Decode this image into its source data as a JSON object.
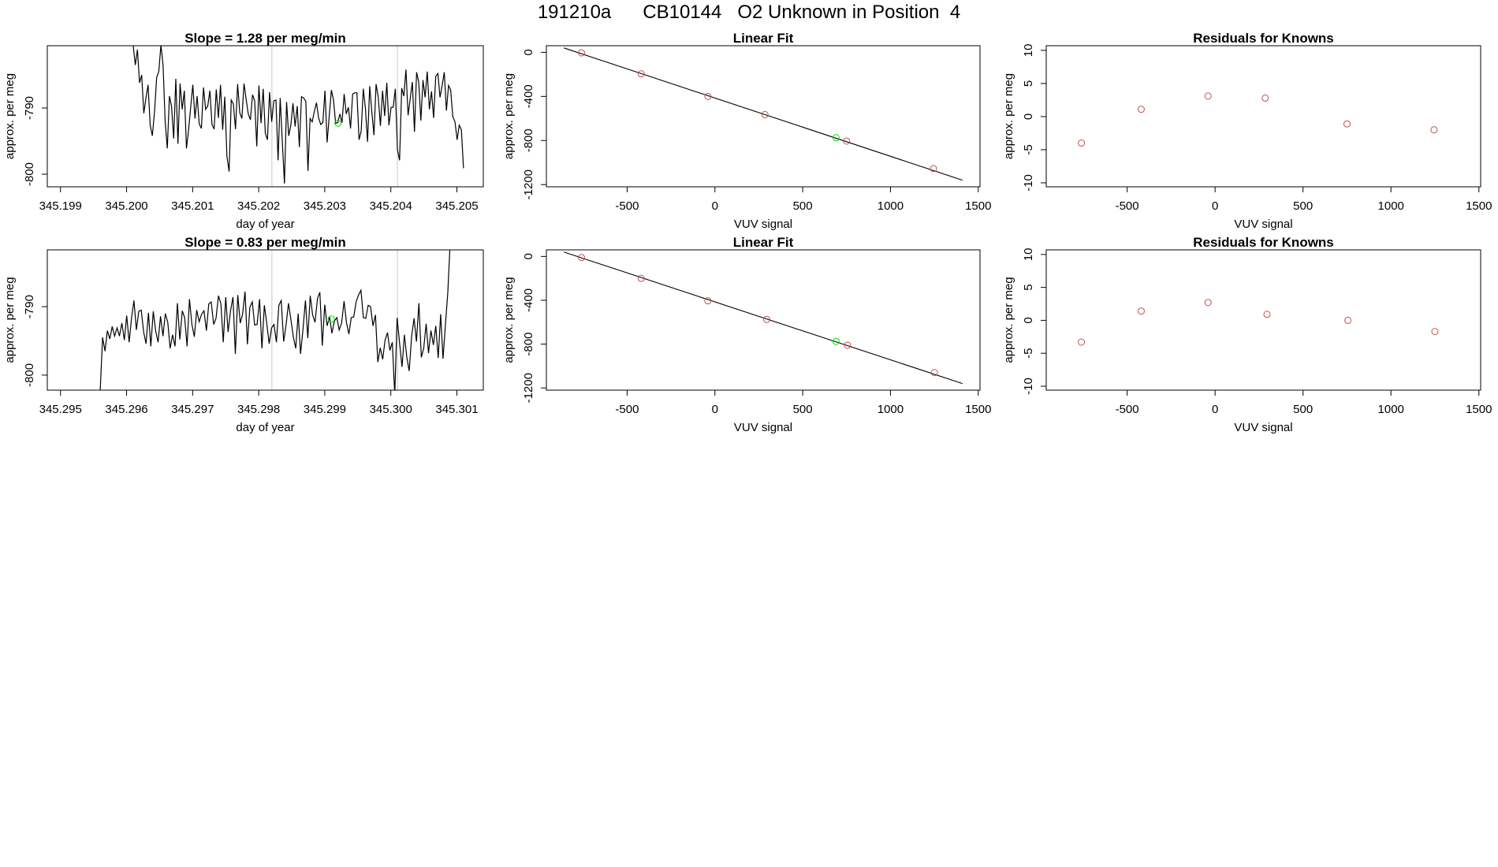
{
  "page": {
    "title": "191210a      CB10144   O2 Unknown in Position  4"
  },
  "colors": {
    "line": "#000000",
    "known_point": "#c0504d",
    "unknown_point": "#00e000",
    "gridline": "#c8c8c8",
    "fit_line": "#000000"
  },
  "chart_data": [
    {
      "id": "ts1",
      "type": "line",
      "title": "Slope =  1.28  per meg/min",
      "xlabel": "day of year",
      "ylabel": "approx. per meg",
      "xlim": [
        345.1988,
        345.2054
      ],
      "ylim": [
        -801.9,
        -780.6
      ],
      "xticks": [
        "345.199",
        "345.200",
        "345.201",
        "345.202",
        "345.203",
        "345.204",
        "345.205"
      ],
      "yticks": [
        "-800",
        "-790"
      ],
      "vlines": [
        345.2022,
        345.2041
      ],
      "unknown_point": {
        "x": 345.2032,
        "y": -792.3
      },
      "series": {
        "name": "approx. per meg",
        "x_start": 345.2001,
        "x_end": 345.2051,
        "y": [
          -780.5,
          -783.5,
          -781.2,
          -786.2,
          -785,
          -790.8,
          -788.5,
          -786.5,
          -792.6,
          -794.2,
          -790.6,
          -785.4,
          -784.5,
          -780.5,
          -783.5,
          -792.1,
          -796.1,
          -788.2,
          -789.8,
          -794.6,
          -785.6,
          -795.4,
          -786.3,
          -790.2,
          -787.4,
          -796.1,
          -793.3,
          -789.8,
          -786.5,
          -791.6,
          -788.2,
          -792.4,
          -793.1,
          -786.9,
          -790.2,
          -789.7,
          -787.4,
          -792.5,
          -793.2,
          -787.2,
          -791.5,
          -786.5,
          -793.3,
          -788.3,
          -797.3,
          -799.6,
          -788.8,
          -789.4,
          -793.2,
          -786.4,
          -790.7,
          -791.6,
          -786.3,
          -788.7,
          -790.9,
          -791.8,
          -788,
          -788.9,
          -795.8,
          -786.6,
          -792.3,
          -787.1,
          -793.8,
          -794.8,
          -787.6,
          -792.1,
          -788.9,
          -788.8,
          -797.9,
          -788.5,
          -795.2,
          -801.4,
          -789.1,
          -794.2,
          -792.6,
          -789.3,
          -792.8,
          -789.7,
          -795.9,
          -788.3,
          -788.5,
          -789,
          -799.5,
          -791.6,
          -792.1,
          -790.5,
          -789.2,
          -791.5,
          -792.5,
          -792.2,
          -787.4,
          -795.2,
          -791.2,
          -787.3,
          -788.8,
          -792.3,
          -792.2,
          -790.9,
          -792.2,
          -787.9,
          -790.9,
          -789.9,
          -793.1,
          -787.9,
          -787.7,
          -787.7,
          -794.8,
          -793.5,
          -787.1,
          -790.1,
          -795.1,
          -786.7,
          -790.6,
          -794.1,
          -786.4,
          -788.4,
          -792.7,
          -787.4,
          -791.2,
          -786.2,
          -792.6,
          -789.9,
          -789.9,
          -787.1,
          -796.3,
          -797.9,
          -787,
          -788.2,
          -784.2,
          -791.1,
          -788.6,
          -786.1,
          -793.6,
          -784.6,
          -786.1,
          -791.9,
          -785.8,
          -788.4,
          -784.5,
          -790.2,
          -787.5,
          -791.5,
          -785.2,
          -784.8,
          -788.4,
          -786.6,
          -784.6,
          -790.4,
          -786.6,
          -787.3,
          -791.3,
          -792.1,
          -794.8,
          -792.6,
          -793.3,
          -799.1
        ]
      }
    },
    {
      "id": "fit1",
      "type": "scatter",
      "title": "Linear Fit",
      "xlabel": "VUV signal",
      "ylabel": "approx. per meg",
      "xlim": [
        -960,
        1510
      ],
      "ylim": [
        -1220,
        60
      ],
      "xticks": [
        -500,
        0,
        500,
        1000,
        1500
      ],
      "yticks": [
        0,
        -400,
        -800,
        -1200
      ],
      "fit_line": {
        "x": [
          -860,
          1410
        ],
        "y": [
          40,
          -1160
        ]
      },
      "knowns": {
        "x": [
          -760,
          -420,
          -40,
          285,
          750,
          1245
        ],
        "y": [
          -5,
          -195,
          -400,
          -565,
          -805,
          -1055
        ]
      },
      "unknown": {
        "x": 690,
        "y": -775
      }
    },
    {
      "id": "res1",
      "type": "scatter",
      "title": "Residuals for Knowns",
      "xlabel": "VUV signal",
      "ylabel": "approx. per meg",
      "xlim": [
        -960,
        1510
      ],
      "ylim": [
        -10.6,
        10.7
      ],
      "xticks": [
        -500,
        0,
        500,
        1000,
        1500
      ],
      "yticks": [
        10,
        5,
        0,
        -5,
        -10
      ],
      "points": {
        "x": [
          -760,
          -420,
          -40,
          285,
          750,
          1245
        ],
        "y": [
          -4,
          1.1,
          3.1,
          2.8,
          -1.1,
          -2.0
        ]
      }
    },
    {
      "id": "ts2",
      "type": "line",
      "title": "Slope =  0.83  per meg/min",
      "xlabel": "day of year",
      "ylabel": "approx. per meg",
      "xlim": [
        345.2948,
        345.3014
      ],
      "ylim": [
        -802.2,
        -781.7
      ],
      "xticks": [
        "345.295",
        "345.296",
        "345.297",
        "345.298",
        "345.299",
        "345.300",
        "345.301"
      ],
      "yticks": [
        "-800",
        "-790"
      ],
      "vlines": [
        345.2982,
        345.3001
      ],
      "unknown_point": {
        "x": 345.2991,
        "y": -791.8
      },
      "series": {
        "name": "approx. per meg",
        "x_start": 345.2956,
        "x_end": 345.3009,
        "y": [
          -802.5,
          -794.5,
          -796.5,
          -793.5,
          -794.7,
          -792.9,
          -794.3,
          -793.1,
          -794.3,
          -792.4,
          -794.9,
          -791.3,
          -795.2,
          -791.7,
          -789.1,
          -793.4,
          -790.7,
          -790.5,
          -793.7,
          -795.4,
          -790.9,
          -795.8,
          -790.7,
          -793.6,
          -795.2,
          -791.4,
          -794.3,
          -791,
          -792.3,
          -796.1,
          -794.1,
          -795.8,
          -789.5,
          -794.8,
          -790.6,
          -791.6,
          -795.8,
          -788.9,
          -792.6,
          -794.4,
          -790.5,
          -792.2,
          -791.1,
          -790.6,
          -793.5,
          -789.6,
          -789.3,
          -792.6,
          -791.7,
          -788.4,
          -789.6,
          -795.2,
          -788.6,
          -793.7,
          -790.6,
          -788.6,
          -796.9,
          -788.3,
          -792.4,
          -791.1,
          -787.8,
          -795.5,
          -790.1,
          -789.3,
          -792.7,
          -792.6,
          -788.9,
          -796.1,
          -789.8,
          -792.4,
          -795.4,
          -793.1,
          -792.6,
          -795.2,
          -789.8,
          -789.1,
          -795.1,
          -792.7,
          -789.5,
          -791.9,
          -794.4,
          -796.1,
          -791,
          -796.9,
          -793.3,
          -789.1,
          -794.6,
          -788.4,
          -791.2,
          -792.3,
          -788.8,
          -787.9,
          -795.7,
          -789.7,
          -792.8,
          -791.5,
          -793.9,
          -792.1,
          -791.6,
          -793.4,
          -792.4,
          -789.2,
          -792.3,
          -794,
          -791.6,
          -791.5,
          -789.3,
          -788.3,
          -787.6,
          -791.6,
          -791.7,
          -789.8,
          -790,
          -792.8,
          -791.2,
          -798.1,
          -796,
          -797.7,
          -794.9,
          -793.8,
          -796.4,
          -795.2,
          -802.9,
          -791.6,
          -795.3,
          -798.8,
          -794.1,
          -797.4,
          -799.4,
          -794.3,
          -791.7,
          -795.1,
          -789.5,
          -797.4,
          -796.1,
          -792.5,
          -796.8,
          -793.5,
          -795.6,
          -792.8,
          -797.5,
          -791.1,
          -797.6,
          -792.6,
          -787.9,
          -780.3
        ]
      }
    },
    {
      "id": "fit2",
      "type": "scatter",
      "title": "Linear Fit",
      "xlabel": "VUV signal",
      "ylabel": "approx. per meg",
      "xlim": [
        -960,
        1510
      ],
      "ylim": [
        -1220,
        60
      ],
      "xticks": [
        -500,
        0,
        500,
        1000,
        1500
      ],
      "yticks": [
        0,
        -400,
        -800,
        -1200
      ],
      "fit_line": {
        "x": [
          -860,
          1410
        ],
        "y": [
          40,
          -1160
        ]
      },
      "knowns": {
        "x": [
          -760,
          -420,
          -40,
          295,
          755,
          1250
        ],
        "y": [
          -10,
          -200,
          -405,
          -575,
          -810,
          -1060
        ]
      },
      "unknown": {
        "x": 690,
        "y": -775
      }
    },
    {
      "id": "res2",
      "type": "scatter",
      "title": "Residuals for Knowns",
      "xlabel": "VUV signal",
      "ylabel": "approx. per meg",
      "xlim": [
        -960,
        1510
      ],
      "ylim": [
        -10.6,
        10.7
      ],
      "xticks": [
        -500,
        0,
        500,
        1000,
        1500
      ],
      "yticks": [
        10,
        5,
        0,
        -5,
        -10
      ],
      "points": {
        "x": [
          -760,
          -420,
          -40,
          295,
          755,
          1250
        ],
        "y": [
          -3.3,
          1.4,
          2.7,
          0.9,
          0.0,
          -1.7
        ]
      }
    }
  ]
}
